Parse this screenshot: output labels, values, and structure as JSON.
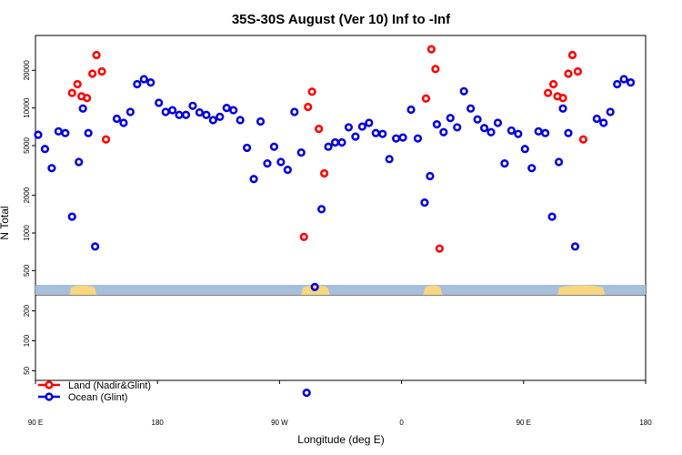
{
  "chart_data": {
    "type": "scatter",
    "title": "35S-30S August (Ver 10)   Inf to -Inf",
    "xlabel": "Longitude (deg E)",
    "ylabel": "N Total",
    "x_ticks": [
      {
        "value": 90,
        "label": "90 E"
      },
      {
        "value": 180,
        "label": "180"
      },
      {
        "value": 270,
        "label": "90 W"
      },
      {
        "value": 360,
        "label": "0"
      },
      {
        "value": 450,
        "label": "90 E"
      },
      {
        "value": 540,
        "label": "180"
      }
    ],
    "xlim": [
      90,
      540
    ],
    "y_scale": "log",
    "upper_panel": {
      "ylim": [
        320,
        38000
      ],
      "y_ticks": [
        {
          "value": 500,
          "label": "500"
        },
        {
          "value": 1000,
          "label": "1000"
        },
        {
          "value": 2000,
          "label": "2000"
        },
        {
          "value": 5000,
          "label": "5000"
        },
        {
          "value": 10000,
          "label": "10000"
        },
        {
          "value": 20000,
          "label": "20000"
        }
      ]
    },
    "lower_panel": {
      "ylim": [
        40,
        290
      ],
      "y_ticks": [
        {
          "value": 50,
          "label": "50"
        },
        {
          "value": 100,
          "label": "100"
        },
        {
          "value": 200,
          "label": "200"
        }
      ]
    },
    "land_strip": {
      "ocean_color": "#a8bfdc",
      "land_color": "#f9d77e",
      "land_ranges": [
        [
          115,
          135
        ],
        [
          286,
          307
        ],
        [
          376,
          390
        ],
        [
          475,
          510
        ]
      ]
    },
    "series": [
      {
        "name": "Land (Nadir&Glint)",
        "color": "#ff0000",
        "points": [
          [
            117,
            13200
          ],
          [
            121,
            15500
          ],
          [
            124,
            12400
          ],
          [
            128,
            12000
          ],
          [
            132,
            18800
          ],
          [
            135,
            26500
          ],
          [
            139,
            19600
          ],
          [
            142,
            5600
          ],
          [
            288,
            930
          ],
          [
            291,
            10200
          ],
          [
            294,
            13500
          ],
          [
            299,
            6800
          ],
          [
            303,
            3000
          ],
          [
            378,
            11900
          ],
          [
            382,
            29500
          ],
          [
            385,
            20500
          ],
          [
            388,
            750
          ],
          [
            468,
            13200
          ],
          [
            472,
            15500
          ],
          [
            475,
            12400
          ],
          [
            479,
            12000
          ],
          [
            483,
            18800
          ],
          [
            486,
            26500
          ],
          [
            490,
            19600
          ],
          [
            494,
            5600
          ]
        ]
      },
      {
        "name": "Ocean (Glint)",
        "color": "#0000e0",
        "points": [
          [
            92,
            6100
          ],
          [
            97,
            4700
          ],
          [
            102,
            3300
          ],
          [
            107,
            6500
          ],
          [
            112,
            6300
          ],
          [
            117,
            1350
          ],
          [
            122,
            3700
          ],
          [
            125,
            9900
          ],
          [
            129,
            6300
          ],
          [
            134,
            780
          ],
          [
            150,
            8200
          ],
          [
            155,
            7600
          ],
          [
            160,
            9300
          ],
          [
            165,
            15500
          ],
          [
            170,
            17000
          ],
          [
            175,
            16000
          ],
          [
            181,
            11000
          ],
          [
            186,
            9300
          ],
          [
            191,
            9600
          ],
          [
            196,
            8800
          ],
          [
            201,
            8800
          ],
          [
            206,
            10400
          ],
          [
            211,
            9200
          ],
          [
            216,
            8800
          ],
          [
            221,
            8000
          ],
          [
            226,
            8500
          ],
          [
            231,
            10000
          ],
          [
            236,
            9600
          ],
          [
            241,
            8000
          ],
          [
            246,
            4800
          ],
          [
            251,
            2700
          ],
          [
            256,
            7800
          ],
          [
            261,
            3600
          ],
          [
            266,
            4900
          ],
          [
            271,
            3700
          ],
          [
            276,
            3200
          ],
          [
            281,
            9300
          ],
          [
            286,
            4400
          ],
          [
            296,
            370
          ],
          [
            301,
            1550
          ],
          [
            306,
            4900
          ],
          [
            311,
            5300
          ],
          [
            316,
            5300
          ],
          [
            321,
            7000
          ],
          [
            326,
            5900
          ],
          [
            331,
            7100
          ],
          [
            336,
            7600
          ],
          [
            341,
            6300
          ],
          [
            346,
            6200
          ],
          [
            351,
            3900
          ],
          [
            356,
            5700
          ],
          [
            361,
            5800
          ],
          [
            367,
            9700
          ],
          [
            372,
            5700
          ],
          [
            377,
            1750
          ],
          [
            381,
            2850
          ],
          [
            386,
            7400
          ],
          [
            391,
            6400
          ],
          [
            396,
            8300
          ],
          [
            401,
            7000
          ],
          [
            406,
            13600
          ],
          [
            411,
            9900
          ],
          [
            416,
            8100
          ],
          [
            421,
            6900
          ],
          [
            426,
            6400
          ],
          [
            431,
            7600
          ],
          [
            436,
            3600
          ],
          [
            441,
            6600
          ],
          [
            446,
            6200
          ],
          [
            451,
            4700
          ],
          [
            456,
            3300
          ],
          [
            461,
            6500
          ],
          [
            466,
            6300
          ],
          [
            471,
            1350
          ],
          [
            476,
            3700
          ],
          [
            479,
            9900
          ],
          [
            483,
            6300
          ],
          [
            488,
            780
          ],
          [
            504,
            8200
          ],
          [
            509,
            7600
          ],
          [
            514,
            9300
          ],
          [
            519,
            15500
          ],
          [
            524,
            17000
          ],
          [
            529,
            16000
          ],
          [
            290,
            30
          ]
        ]
      }
    ],
    "legend": {
      "placement": "bottom-left"
    }
  }
}
